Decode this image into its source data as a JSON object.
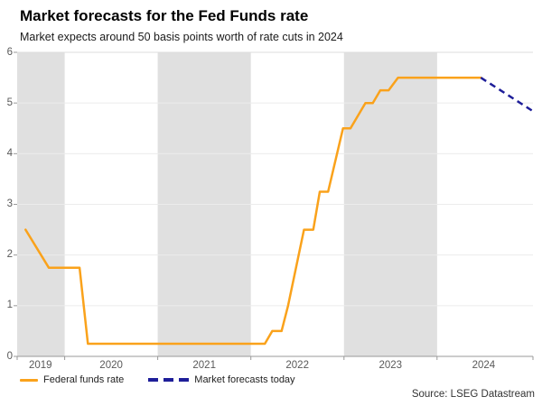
{
  "chart_data": {
    "type": "line",
    "title": "Market forecasts for the Fed Funds rate",
    "subtitle": "Market expects around 50 basis points worth of rate cuts in 2024",
    "source": "Source: LSEG Datastream",
    "x_range": [
      2019.49,
      2025.03
    ],
    "ylim": [
      0,
      6
    ],
    "y_ticks": [
      0,
      1,
      2,
      3,
      4,
      5,
      6
    ],
    "x_ticks": [
      {
        "label": "2019",
        "t": 2019.74
      },
      {
        "label": "2020",
        "t": 2020.5
      },
      {
        "label": "2021",
        "t": 2021.5
      },
      {
        "label": "2022",
        "t": 2022.5
      },
      {
        "label": "2023",
        "t": 2023.5
      },
      {
        "label": "2024",
        "t": 2024.5
      }
    ],
    "year_boundaries": [
      2020,
      2021,
      2022,
      2023,
      2024
    ],
    "shaded_spans": [
      [
        2019.49,
        2020
      ],
      [
        2021,
        2022
      ],
      [
        2023,
        2024
      ]
    ],
    "grid": "on",
    "legend_position": "bottom-left",
    "colors": {
      "band": "#e0e0e0",
      "grid": "#ececec",
      "grid_top": "#dcdcdc",
      "axis": "#999999"
    },
    "series": [
      {
        "name": "Federal funds rate",
        "color": "#FAA21B",
        "style": "solid",
        "points": [
          [
            2019.58,
            2.5
          ],
          [
            2019.83,
            1.75
          ],
          [
            2020.16,
            1.75
          ],
          [
            2020.25,
            0.25
          ],
          [
            2022.15,
            0.25
          ],
          [
            2022.23,
            0.5
          ],
          [
            2022.33,
            0.5
          ],
          [
            2022.4,
            1.0
          ],
          [
            2022.57,
            2.5
          ],
          [
            2022.67,
            2.5
          ],
          [
            2022.74,
            3.25
          ],
          [
            2022.83,
            3.25
          ],
          [
            2022.99,
            4.5
          ],
          [
            2023.07,
            4.5
          ],
          [
            2023.23,
            5.0
          ],
          [
            2023.31,
            5.0
          ],
          [
            2023.39,
            5.25
          ],
          [
            2023.48,
            5.25
          ],
          [
            2023.58,
            5.5
          ],
          [
            2024.47,
            5.5
          ]
        ]
      },
      {
        "name": "Market forecasts today",
        "color": "#1E1E99",
        "style": "dashed",
        "points": [
          [
            2024.47,
            5.5
          ],
          [
            2025.02,
            4.85
          ]
        ]
      }
    ]
  }
}
